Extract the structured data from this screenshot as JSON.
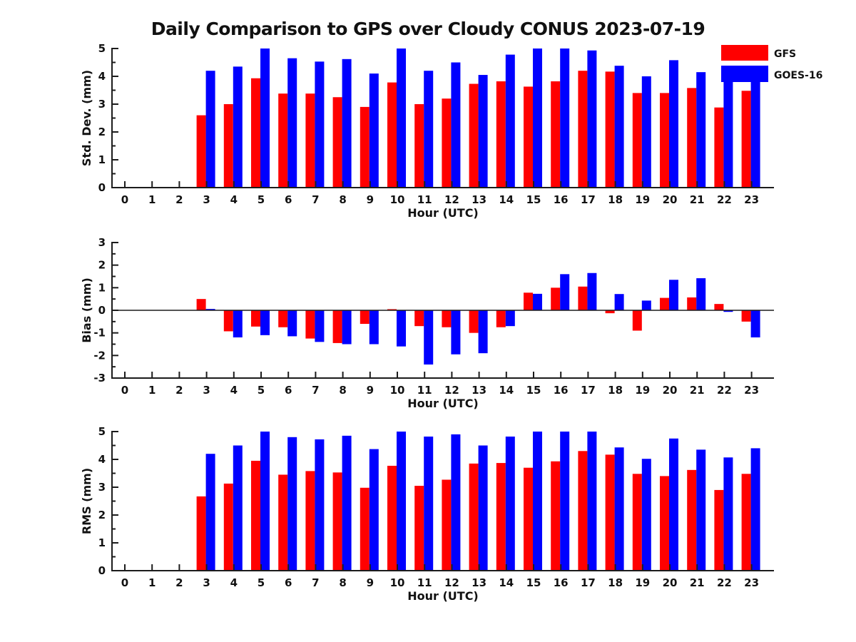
{
  "title": "Daily Comparison to GPS over Cloudy CONUS 2023-07-19",
  "legend": {
    "entries": [
      {
        "label": "GFS",
        "color": "#ff0000"
      },
      {
        "label": "GOES-16",
        "color": "#0000ff"
      }
    ]
  },
  "chart_data": [
    {
      "id": "stddev",
      "type": "bar",
      "ylabel": "Std. Dev. (mm)",
      "xlabel": "Hour (UTC)",
      "ylim": [
        0,
        5
      ],
      "yticks": [
        0,
        1,
        2,
        3,
        4,
        5
      ],
      "grid": false,
      "legend_position": "upper-right-outside-bars",
      "categories": [
        0,
        1,
        2,
        3,
        4,
        5,
        6,
        7,
        8,
        9,
        10,
        11,
        12,
        13,
        14,
        15,
        16,
        17,
        18,
        19,
        20,
        21,
        22,
        23
      ],
      "series": [
        {
          "name": "GFS",
          "color": "#ff0000",
          "values": [
            null,
            null,
            null,
            2.6,
            3.0,
            3.93,
            3.38,
            3.38,
            3.25,
            2.9,
            3.78,
            3.0,
            3.2,
            3.73,
            3.82,
            3.63,
            3.82,
            4.2,
            4.17,
            3.4,
            3.4,
            3.58,
            2.88,
            3.48
          ]
        },
        {
          "name": "GOES-16",
          "color": "#0000ff",
          "values": [
            null,
            null,
            null,
            4.2,
            4.35,
            5.0,
            4.65,
            4.53,
            4.62,
            4.1,
            5.0,
            4.2,
            4.5,
            4.05,
            4.78,
            5.0,
            5.0,
            4.93,
            4.38,
            4.0,
            4.58,
            4.15,
            4.1,
            4.2
          ]
        }
      ]
    },
    {
      "id": "bias",
      "type": "bar",
      "ylabel": "Bias (mm)",
      "xlabel": "Hour (UTC)",
      "ylim": [
        -3,
        3
      ],
      "yticks": [
        -3,
        -2,
        -1,
        0,
        1,
        2,
        3
      ],
      "grid": false,
      "zero_line": true,
      "categories": [
        0,
        1,
        2,
        3,
        4,
        5,
        6,
        7,
        8,
        9,
        10,
        11,
        12,
        13,
        14,
        15,
        16,
        17,
        18,
        19,
        20,
        21,
        22,
        23
      ],
      "series": [
        {
          "name": "GFS",
          "color": "#ff0000",
          "values": [
            null,
            null,
            null,
            0.5,
            -0.93,
            -0.72,
            -0.75,
            -1.25,
            -1.45,
            -0.6,
            0.05,
            -0.7,
            -0.75,
            -1.0,
            -0.75,
            0.78,
            1.0,
            1.05,
            -0.13,
            -0.9,
            0.55,
            0.57,
            0.28,
            -0.5
          ]
        },
        {
          "name": "GOES-16",
          "color": "#0000ff",
          "values": [
            null,
            null,
            null,
            0.06,
            -1.2,
            -1.1,
            -1.15,
            -1.4,
            -1.5,
            -1.5,
            -1.6,
            -2.4,
            -1.95,
            -1.9,
            -0.7,
            0.73,
            1.6,
            1.65,
            0.72,
            0.43,
            1.35,
            1.42,
            -0.07,
            -1.2
          ]
        }
      ]
    },
    {
      "id": "rms",
      "type": "bar",
      "ylabel": "RMS (mm)",
      "xlabel": "Hour (UTC)",
      "ylim": [
        0,
        5
      ],
      "yticks": [
        0,
        1,
        2,
        3,
        4,
        5
      ],
      "grid": false,
      "categories": [
        0,
        1,
        2,
        3,
        4,
        5,
        6,
        7,
        8,
        9,
        10,
        11,
        12,
        13,
        14,
        15,
        16,
        17,
        18,
        19,
        20,
        21,
        22,
        23
      ],
      "series": [
        {
          "name": "GFS",
          "color": "#ff0000",
          "values": [
            null,
            null,
            null,
            2.67,
            3.13,
            3.95,
            3.45,
            3.58,
            3.53,
            2.98,
            3.77,
            3.05,
            3.27,
            3.85,
            3.87,
            3.7,
            3.93,
            4.3,
            4.17,
            3.48,
            3.4,
            3.62,
            2.9,
            3.48
          ]
        },
        {
          "name": "GOES-16",
          "color": "#0000ff",
          "values": [
            null,
            null,
            null,
            4.2,
            4.5,
            5.0,
            4.8,
            4.72,
            4.85,
            4.37,
            5.0,
            4.82,
            4.9,
            4.5,
            4.82,
            5.0,
            5.0,
            5.0,
            4.43,
            4.02,
            4.75,
            4.35,
            4.07,
            4.4
          ]
        }
      ]
    }
  ]
}
